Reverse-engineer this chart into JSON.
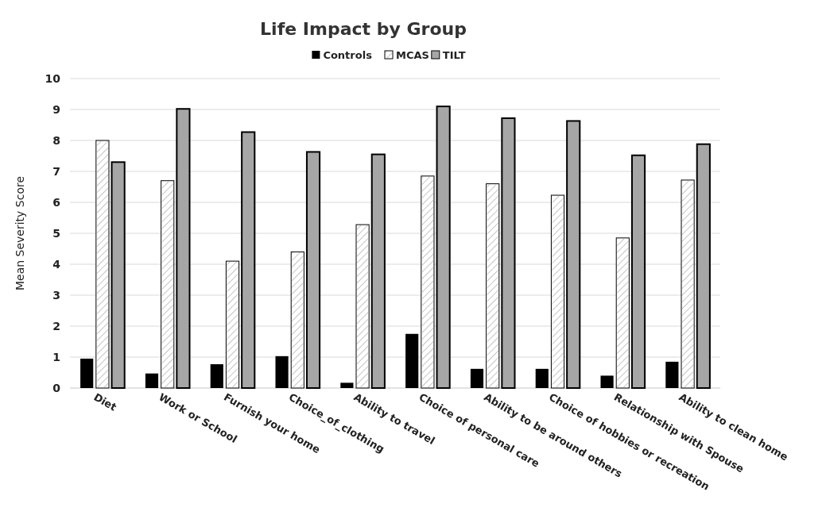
{
  "chart_data": {
    "type": "bar",
    "title": "Life Impact by Group",
    "ylabel": "Mean Severity Score",
    "categories": [
      "Diet",
      "Work or School",
      "Furnish your home",
      "Choice_of_clothing",
      "Ability to travel",
      "Choice of personal care",
      "Ability to be around others",
      "Choice of hobbies or recreation",
      "Relationship with Spouse",
      "Ability to clean home"
    ],
    "series": [
      {
        "name": "Controls",
        "color": "#000000",
        "values": [
          0.95,
          0.47,
          0.77,
          1.03,
          0.17,
          1.75,
          0.62,
          0.62,
          0.4,
          0.85
        ]
      },
      {
        "name": "MCAS",
        "color": "#ffffff",
        "values": [
          8.0,
          6.7,
          4.1,
          4.4,
          5.28,
          6.85,
          6.6,
          6.23,
          4.85,
          6.72
        ]
      },
      {
        "name": "TILT",
        "color": "#a6a6a6",
        "values": [
          7.3,
          9.02,
          8.27,
          7.63,
          7.55,
          9.1,
          8.72,
          8.63,
          7.52,
          7.88
        ]
      }
    ],
    "ylim": [
      0,
      10
    ],
    "yticks": [
      0,
      1,
      2,
      3,
      4,
      5,
      6,
      7,
      8,
      9,
      10
    ],
    "grid": "y",
    "legend": "top"
  }
}
